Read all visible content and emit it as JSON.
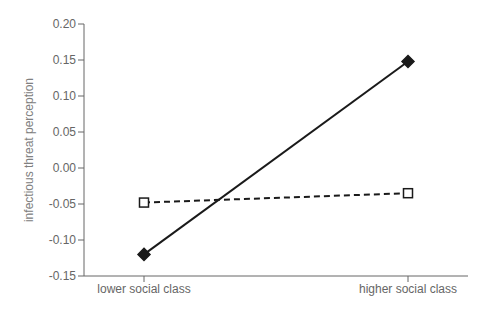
{
  "chart_data": {
    "type": "line",
    "categories": [
      "lower social class",
      "higher social class"
    ],
    "series": [
      {
        "values": [
          -0.12,
          0.148
        ],
        "color": "#1a1a1a",
        "marker": "diamond",
        "line_style": "solid"
      },
      {
        "values": [
          -0.048,
          -0.035
        ],
        "color": "#1a1a1a",
        "marker": "open_square",
        "line_style": "dashed"
      }
    ],
    "ylabel": "infectious threat perception",
    "ylim": [
      -0.15,
      0.2
    ],
    "yticks": [
      -0.15,
      {
        "value": -0.1,
        "label": "-0.10"
      },
      -0.05,
      {
        "value": 0,
        "label": "0.00"
      },
      0.05,
      {
        "value": 0.1,
        "label": "0.10"
      },
      0.15,
      {
        "value": 0.2,
        "label": "0.20"
      }
    ],
    "grid": false
  }
}
